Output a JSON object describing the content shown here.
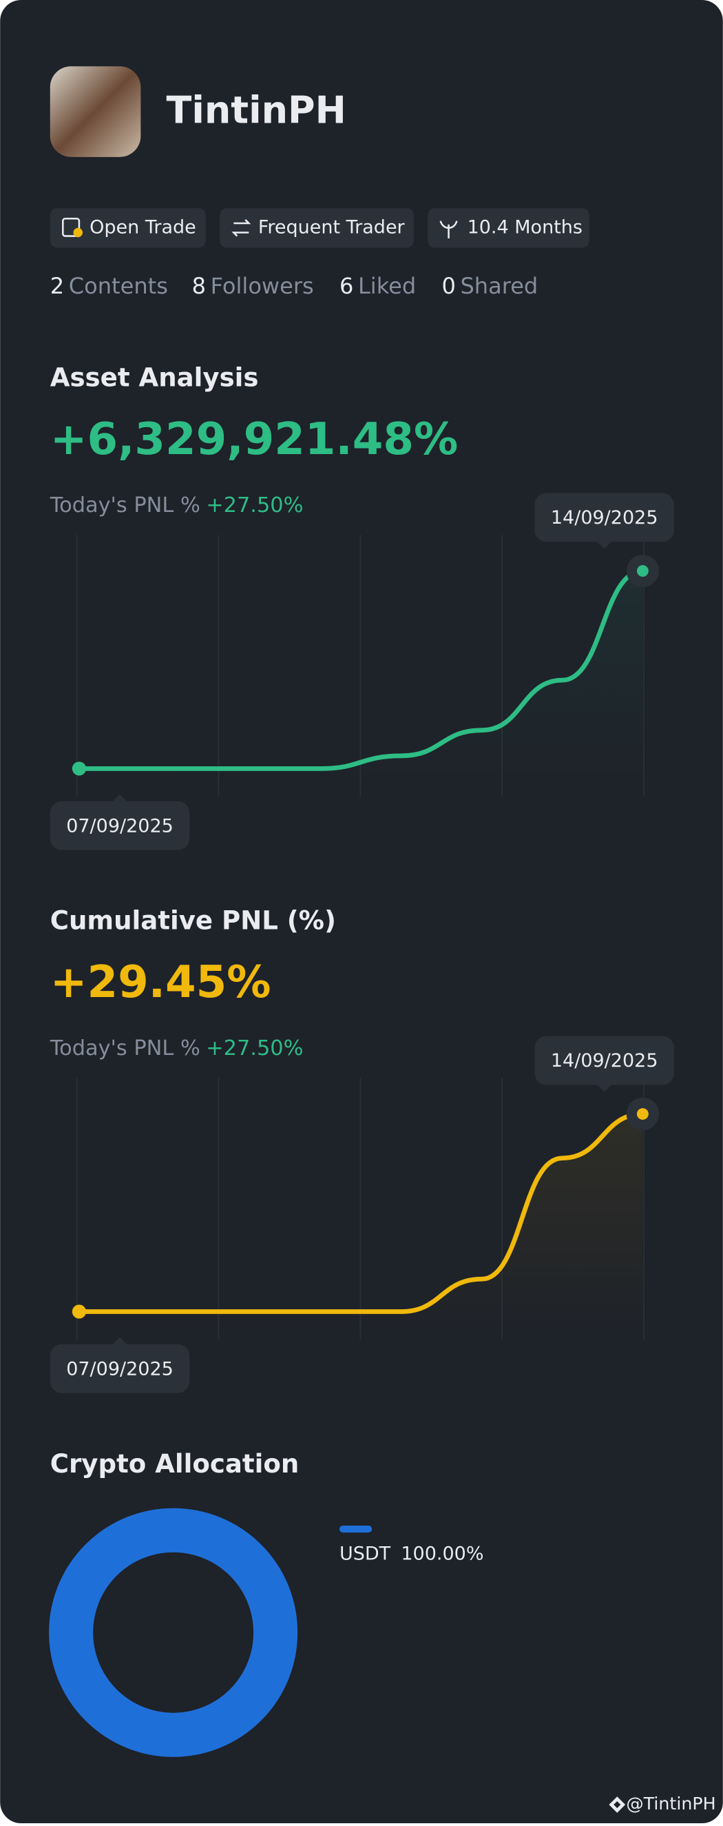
{
  "profile": {
    "name": "TintinPH"
  },
  "badges": [
    "Open Trade",
    "Frequent Trader",
    "10.4 Months"
  ],
  "stats": [
    {
      "value": 2,
      "label": "Contents"
    },
    {
      "value": 8,
      "label": "Followers"
    },
    {
      "value": 6,
      "label": "Liked"
    },
    {
      "value": 0,
      "label": "Shared"
    }
  ],
  "chart_data": [
    {
      "type": "line",
      "title": "Asset Analysis",
      "headline": "+6,329,921.48%",
      "subtitle_label": "Today's PNL %",
      "subtitle_value": "+27.50%",
      "categories": [
        "07/09/2025",
        null,
        null,
        null,
        null,
        null,
        null,
        "14/09/2025"
      ],
      "series": [
        {
          "color": "#2ebd85",
          "values": [
            0,
            0,
            0,
            0,
            410000,
            1230000,
            2830000,
            6329921.48
          ]
        }
      ]
    },
    {
      "type": "line",
      "title": "Cumulative PNL (%)",
      "headline": "+29.45%",
      "subtitle_label": "Today's PNL %",
      "subtitle_value": "+27.50%",
      "categories": [
        "07/09/2025",
        null,
        null,
        null,
        null,
        null,
        null,
        "14/09/2025"
      ],
      "series": [
        {
          "color": "#f0b90b",
          "values": [
            0,
            0,
            0,
            0,
            0,
            4.85,
            22.87,
            29.45
          ]
        }
      ]
    },
    {
      "type": "pie",
      "title": "Crypto Allocation",
      "categories": [
        "USDT"
      ],
      "values": [
        100
      ],
      "value_labels": [
        "100.00%"
      ],
      "colors": [
        "#1f6fd8"
      ]
    }
  ],
  "footer": {
    "handle": "@TintinPH"
  }
}
